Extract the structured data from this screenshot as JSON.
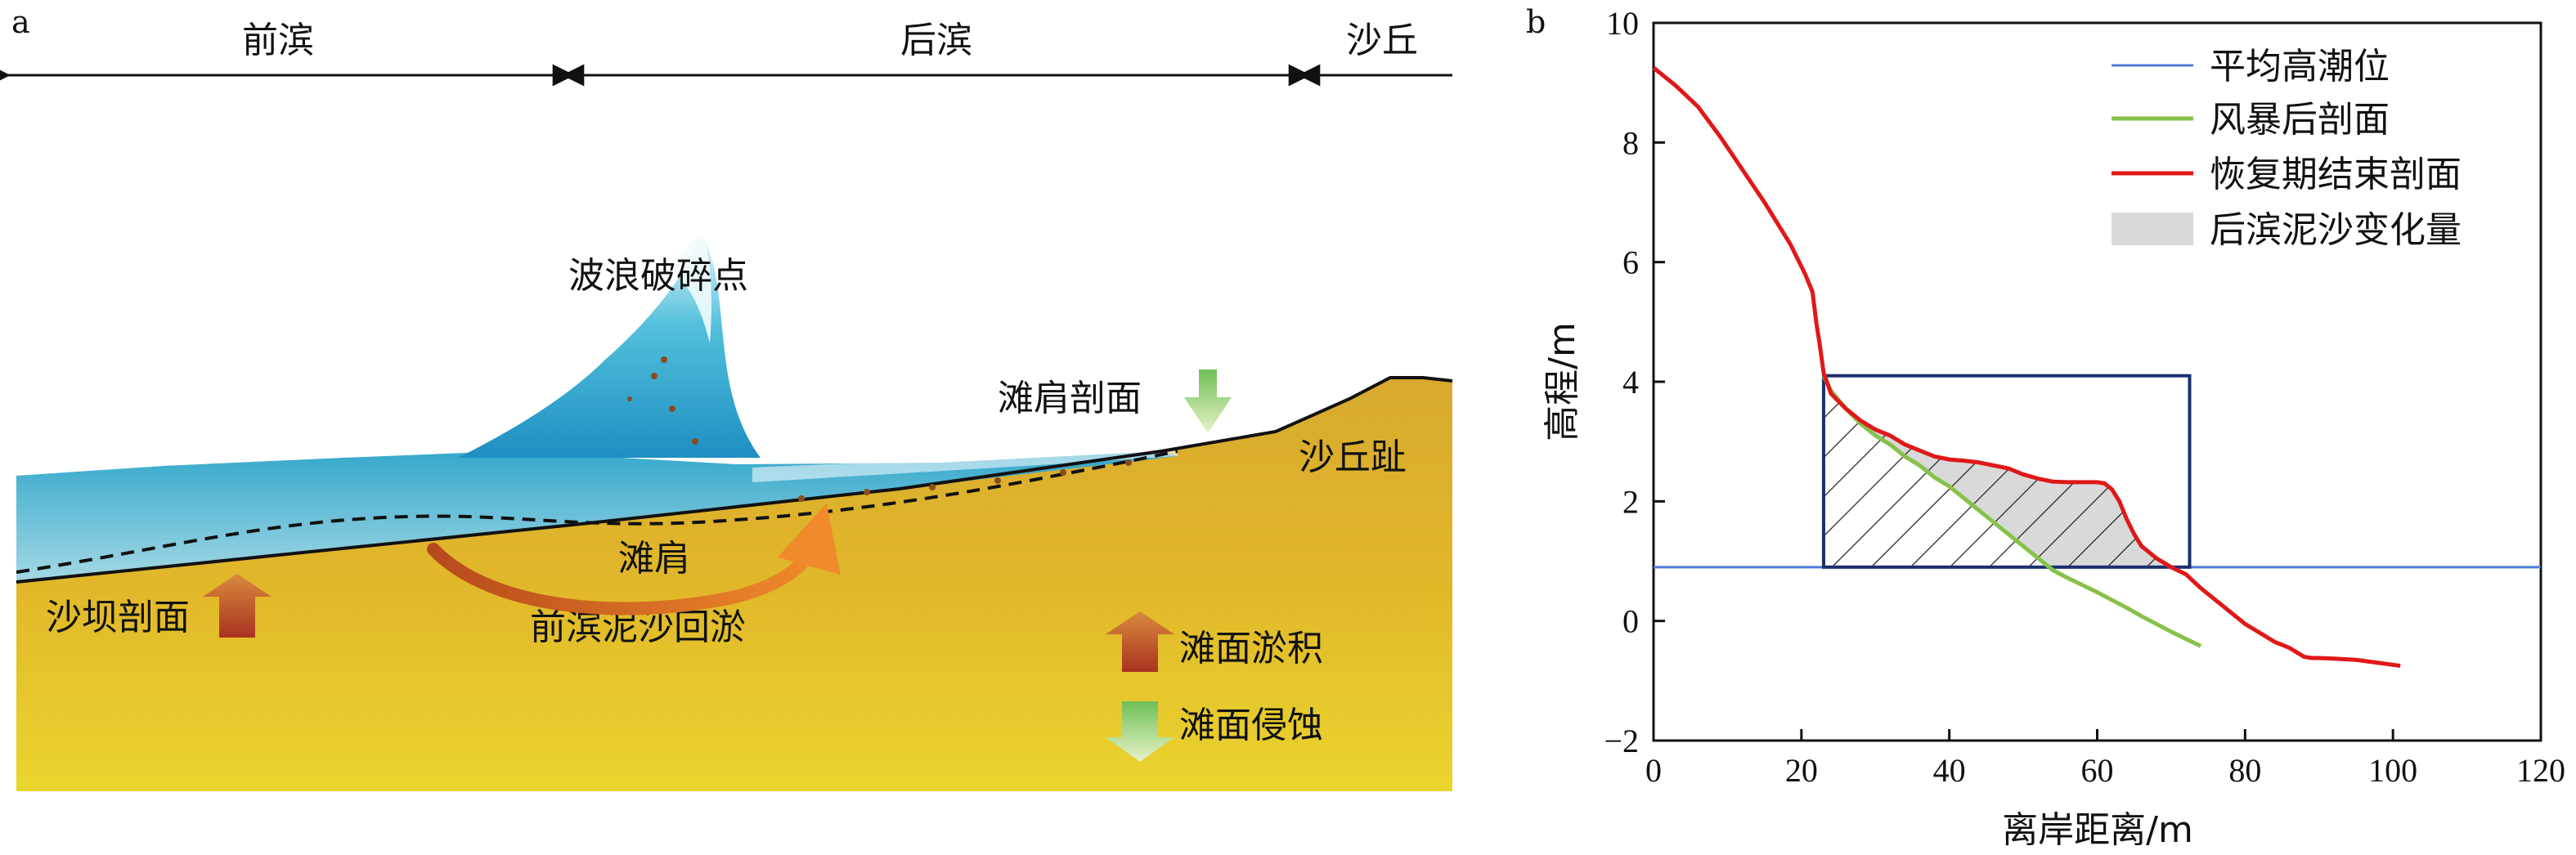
{
  "panel_a": {
    "letter": "a",
    "zones": {
      "foreshore": "前滨",
      "backshore": "后滨",
      "dune": "沙丘"
    },
    "labels": {
      "breaking_point": "波浪破碎点",
      "berm_profile": "滩肩剖面",
      "dune_toe": "沙丘趾",
      "berm": "滩肩",
      "bar_profile": "沙坝剖面",
      "sediment_return": "前滨泥沙回淤",
      "accretion": "滩面淤积",
      "erosion": "滩面侵蚀"
    }
  },
  "panel_b": {
    "letter": "b",
    "colors": {
      "mhw": "#4f7bd8",
      "post_storm": "#86c24a",
      "recovery": "#e01818",
      "hatch": "#222222",
      "fill": "#d9d9d9",
      "box": "#1a2f6e"
    }
  },
  "chart_data": {
    "type": "line",
    "xlabel": "离岸距离/m",
    "ylabel": "高程/m",
    "xlim": [
      0,
      120
    ],
    "ylim": [
      -2,
      10
    ],
    "xticks": [
      "0",
      "20",
      "40",
      "60",
      "80",
      "100",
      "120"
    ],
    "yticks": [
      "−2",
      "0",
      "2",
      "4",
      "6",
      "8",
      "10"
    ],
    "legend_position": "top-right",
    "legend": [
      "平均高潮位",
      "风暴后剖面",
      "恢复期结束剖面",
      "后滨泥沙变化量"
    ],
    "mean_high_water": 0.9,
    "series": [
      {
        "name": "恢复期结束剖面",
        "x": [
          0,
          3,
          6,
          9,
          12,
          15,
          17,
          18.5,
          19.5,
          20.5,
          21.5,
          22,
          22.5,
          23,
          24,
          26,
          28,
          30,
          32,
          34,
          36,
          38,
          40,
          42,
          44,
          46,
          48,
          50,
          52,
          54,
          56,
          58,
          60,
          61,
          62,
          63,
          64,
          65,
          66,
          68,
          70,
          72,
          74,
          76,
          78,
          80,
          82,
          84,
          86,
          88,
          89,
          90,
          92,
          95,
          98,
          101
        ],
        "y": [
          9.25,
          8.95,
          8.6,
          8.1,
          7.55,
          7.0,
          6.6,
          6.3,
          6.05,
          5.8,
          5.5,
          5.0,
          4.6,
          4.15,
          3.8,
          3.55,
          3.35,
          3.2,
          3.1,
          2.95,
          2.85,
          2.75,
          2.7,
          2.68,
          2.65,
          2.6,
          2.55,
          2.45,
          2.38,
          2.33,
          2.32,
          2.32,
          2.32,
          2.3,
          2.2,
          2.0,
          1.7,
          1.45,
          1.25,
          1.05,
          0.9,
          0.78,
          0.55,
          0.35,
          0.15,
          -0.05,
          -0.2,
          -0.35,
          -0.45,
          -0.6,
          -0.62,
          -0.62,
          -0.63,
          -0.65,
          -0.7,
          -0.75
        ]
      },
      {
        "name": "风暴后剖面",
        "x": [
          23,
          24,
          26,
          28,
          30,
          32,
          34,
          36,
          38,
          40,
          42,
          44,
          46,
          48,
          50,
          52,
          54,
          56,
          58,
          60,
          62,
          64,
          66,
          68,
          70,
          72,
          74
        ],
        "y": [
          4.1,
          3.85,
          3.55,
          3.3,
          3.1,
          2.95,
          2.75,
          2.6,
          2.4,
          2.25,
          2.05,
          1.85,
          1.65,
          1.45,
          1.25,
          1.05,
          0.85,
          0.72,
          0.6,
          0.48,
          0.35,
          0.22,
          0.08,
          -0.05,
          -0.18,
          -0.3,
          -0.42
        ]
      }
    ],
    "box": {
      "x": [
        23,
        72.5
      ],
      "y": [
        0.9,
        4.1
      ]
    }
  }
}
